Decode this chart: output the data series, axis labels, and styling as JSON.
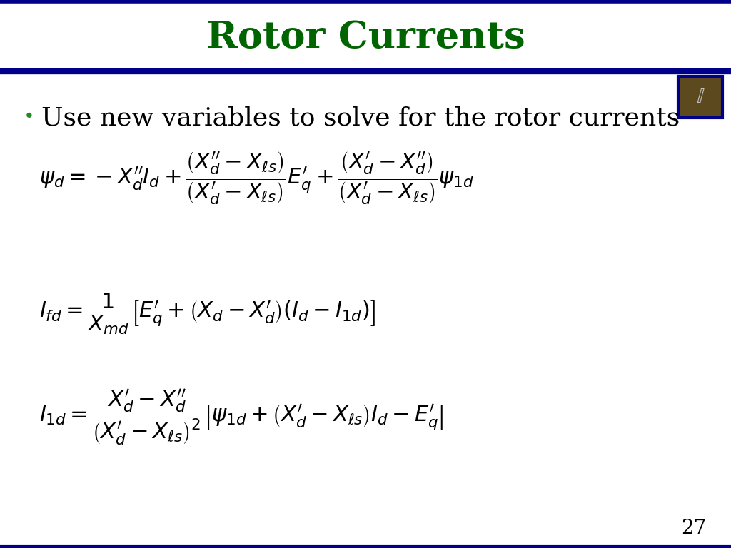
{
  "title": "Rotor Currents",
  "title_color": "#006400",
  "title_fontsize": 38,
  "bg_color": "#FFFFFF",
  "border_color": "#00008B",
  "bullet_text": "Use new variables to solve for the rotor currents",
  "bullet_fontsize": 26,
  "eq_fontsize": 22,
  "page_number": "27",
  "page_number_fontsize": 20,
  "icon_facecolor": "#5C4A1E",
  "icon_edgecolor": "#00008B"
}
